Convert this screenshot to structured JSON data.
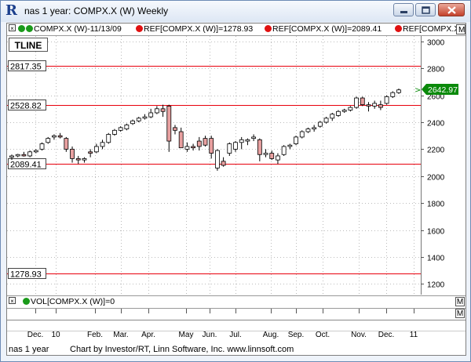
{
  "window": {
    "title": "nas 1 year: COMPX.X (W) Weekly",
    "app_icon": "R"
  },
  "header": {
    "series_label": "COMPX.X (W)-11/13/09",
    "ref1_label": "REF[COMPX.X (W)]=1278.93",
    "ref2_label": "REF[COMPX.X (W)]=2089.41",
    "ref3_label": "REF[COMPX.X",
    "box_right": "M"
  },
  "toolbar": {
    "tline_label": "TLINE"
  },
  "volume": {
    "label": "VOL[COMPX.X (W)]=0"
  },
  "footer": {
    "left": "nas 1 year",
    "credit": "Chart by Investor/RT, Linn Software, Inc. www.linnsoft.com"
  },
  "colors": {
    "up": "#ffffff",
    "down": "#e8a0a0",
    "ref_line": "#e8000c",
    "green_dot": "#1a9a1a",
    "red_dot": "#e01010",
    "last_box": "#0b8a0b"
  },
  "chart_data": {
    "type": "candlestick",
    "y_ticks": [
      1200,
      1400,
      1600,
      1800,
      2000,
      2200,
      2400,
      2600,
      2800,
      3000
    ],
    "ylim": [
      1120,
      3040
    ],
    "x_labels": [
      "Dec.",
      "10",
      "Feb.",
      "Mar.",
      "Apr.",
      "May",
      "Jun.",
      "Jul.",
      "Aug.",
      "Sep.",
      "Oct.",
      "Nov.",
      "Dec.",
      "11"
    ],
    "reference_lines": [
      2817.35,
      2528.82,
      2089.41,
      1278.93
    ],
    "reference_labels": [
      "2817.35",
      "2528.82",
      "2089.41",
      "1278.93"
    ],
    "last_value": 2642.97,
    "last_label": "2642.97",
    "candles": [
      [
        2140,
        2160,
        2120,
        2150
      ],
      [
        2150,
        2165,
        2140,
        2160
      ],
      [
        2160,
        2180,
        2145,
        2150
      ],
      [
        2150,
        2190,
        2140,
        2180
      ],
      [
        2180,
        2200,
        2170,
        2190
      ],
      [
        2200,
        2250,
        2190,
        2240
      ],
      [
        2250,
        2290,
        2240,
        2280
      ],
      [
        2290,
        2310,
        2270,
        2300
      ],
      [
        2300,
        2320,
        2280,
        2290
      ],
      [
        2280,
        2290,
        2180,
        2200
      ],
      [
        2200,
        2220,
        2100,
        2130
      ],
      [
        2130,
        2150,
        2090,
        2120
      ],
      [
        2120,
        2140,
        2100,
        2130
      ],
      [
        2180,
        2200,
        2140,
        2170
      ],
      [
        2180,
        2240,
        2170,
        2220
      ],
      [
        2220,
        2270,
        2200,
        2250
      ],
      [
        2250,
        2320,
        2240,
        2310
      ],
      [
        2310,
        2350,
        2300,
        2340
      ],
      [
        2340,
        2370,
        2330,
        2360
      ],
      [
        2350,
        2390,
        2340,
        2380
      ],
      [
        2390,
        2420,
        2380,
        2410
      ],
      [
        2410,
        2440,
        2400,
        2430
      ],
      [
        2430,
        2460,
        2420,
        2440
      ],
      [
        2440,
        2500,
        2430,
        2470
      ],
      [
        2470,
        2520,
        2460,
        2500
      ],
      [
        2500,
        2530,
        2440,
        2480
      ],
      [
        2520,
        2530,
        2180,
        2260
      ],
      [
        2360,
        2380,
        2310,
        2340
      ],
      [
        2330,
        2360,
        2210,
        2210
      ],
      [
        2200,
        2250,
        2180,
        2220
      ],
      [
        2220,
        2240,
        2190,
        2210
      ],
      [
        2260,
        2290,
        2190,
        2220
      ],
      [
        2280,
        2300,
        2220,
        2230
      ],
      [
        2280,
        2300,
        2130,
        2170
      ],
      [
        2060,
        2200,
        2040,
        2190
      ],
      [
        2110,
        2140,
        2070,
        2080
      ],
      [
        2170,
        2250,
        2150,
        2240
      ],
      [
        2200,
        2260,
        2180,
        2250
      ],
      [
        2250,
        2290,
        2200,
        2270
      ],
      [
        2260,
        2280,
        2230,
        2270
      ],
      [
        2280,
        2310,
        2260,
        2290
      ],
      [
        2270,
        2280,
        2110,
        2160
      ],
      [
        2160,
        2200,
        2140,
        2170
      ],
      [
        2170,
        2190,
        2120,
        2130
      ],
      [
        2120,
        2170,
        2090,
        2150
      ],
      [
        2160,
        2230,
        2150,
        2220
      ],
      [
        2220,
        2240,
        2200,
        2230
      ],
      [
        2240,
        2300,
        2230,
        2290
      ],
      [
        2290,
        2340,
        2280,
        2330
      ],
      [
        2330,
        2360,
        2320,
        2350
      ],
      [
        2350,
        2380,
        2330,
        2360
      ],
      [
        2370,
        2410,
        2360,
        2400
      ],
      [
        2400,
        2440,
        2390,
        2430
      ],
      [
        2430,
        2470,
        2410,
        2460
      ],
      [
        2450,
        2490,
        2440,
        2480
      ],
      [
        2480,
        2500,
        2470,
        2490
      ],
      [
        2490,
        2520,
        2480,
        2510
      ],
      [
        2510,
        2590,
        2500,
        2580
      ],
      [
        2580,
        2590,
        2520,
        2530
      ],
      [
        2530,
        2550,
        2480,
        2520
      ],
      [
        2520,
        2560,
        2500,
        2540
      ],
      [
        2530,
        2560,
        2490,
        2510
      ],
      [
        2540,
        2600,
        2530,
        2590
      ],
      [
        2590,
        2630,
        2580,
        2620
      ],
      [
        2620,
        2650,
        2610,
        2640
      ]
    ]
  }
}
